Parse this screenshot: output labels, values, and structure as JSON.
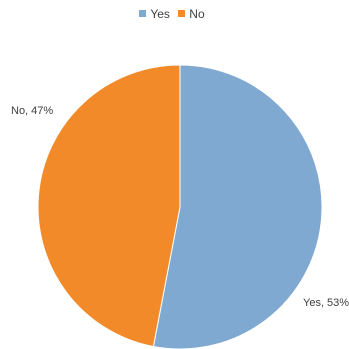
{
  "chart_data": {
    "type": "pie",
    "title": "",
    "series": [
      {
        "name": "Yes",
        "value": 53,
        "label": "Yes, 53%",
        "color": "#7FA9D1"
      },
      {
        "name": "No",
        "value": 47,
        "label": "No, 47%",
        "color": "#F28A29"
      }
    ],
    "legend_position": "top-center",
    "start_angle_deg": 0,
    "direction": "clockwise"
  }
}
